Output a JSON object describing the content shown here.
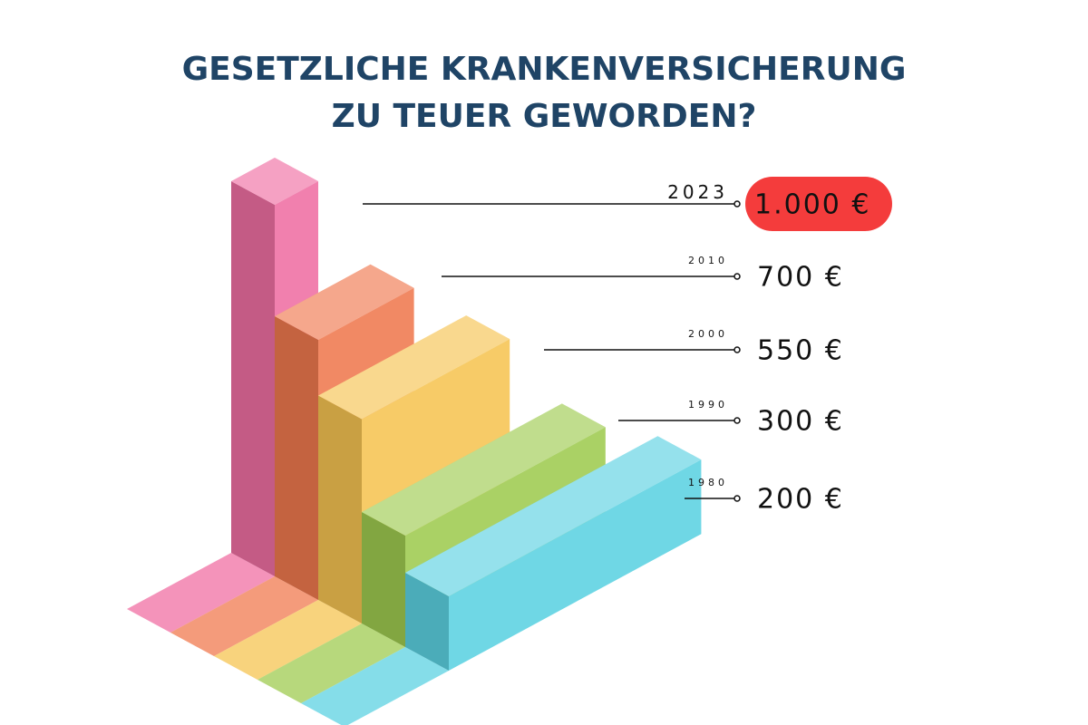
{
  "chart_data": {
    "type": "isometric-bar",
    "title": [
      "GESETZLICHE  KRANKENVERSICHERUNG",
      "ZU TEUER GEWORDEN?"
    ],
    "categories": [
      "2023",
      "2010",
      "2000",
      "1990",
      "1980"
    ],
    "values": [
      1000,
      700,
      550,
      300,
      200
    ],
    "value_labels": [
      "1.000 €",
      "700 €",
      "550 €",
      "300 €",
      "200 €"
    ],
    "colors": [
      "#f06fa3",
      "#f0794f",
      "#f6c452",
      "#9fcb50",
      "#5cd2e2"
    ],
    "highlight_category": "2023",
    "highlight_color": "#f43c3c"
  }
}
